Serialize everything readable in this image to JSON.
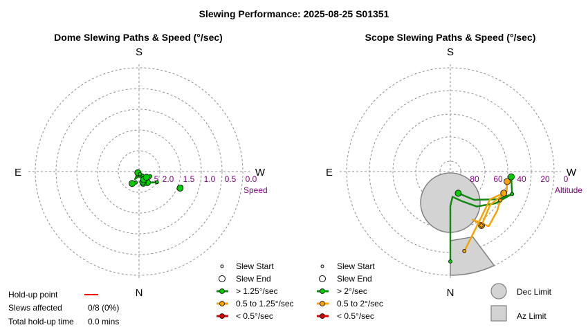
{
  "page": {
    "title": "Slewing Performance: 2025-08-25 S01351"
  },
  "colors": {
    "grid": "#8c8c8c",
    "fast": "#00cc00",
    "fast_line": "#118811",
    "medium": "#f5a300",
    "slow": "#d40000",
    "holdup": "#ff0000",
    "limit_fill": "#d3d3d3",
    "limit_stroke": "#808080",
    "tick": "#800080"
  },
  "chart_data": [
    {
      "type": "scatter",
      "title": "Dome Slewing Paths & Speed (°/sec)",
      "compass": {
        "top": "S",
        "bottom": "N",
        "left": "E",
        "right": "W"
      },
      "radial_axis": {
        "label": "Speed",
        "ticks": [
          "2.5",
          "2.0",
          "1.5",
          "1.0",
          "0.5",
          "0.0"
        ],
        "range": [
          3.0,
          0.0
        ]
      },
      "series": [
        {
          "points": [
            [
              121,
              2.4
            ],
            [
              145,
              2.6
            ],
            [
              180,
              2.87
            ],
            [
              208,
              2.75
            ],
            [
              225,
              2.95
            ]
          ]
        },
        {
          "points": [
            [
              146,
              2.8
            ],
            [
              143,
              2.6
            ]
          ]
        },
        {
          "points": [
            [
              142,
              2.7
            ],
            [
              160,
              2.64
            ]
          ]
        },
        {
          "points": [
            [
              141,
              2.85
            ],
            [
              150,
              2.65
            ],
            [
              160,
              2.68
            ]
          ]
        },
        {
          "points": [
            [
              158,
              2.92
            ],
            [
              150,
              2.73
            ]
          ]
        },
        {
          "points": [
            [
              113,
              2.65
            ],
            [
              128,
              2.73
            ]
          ]
        },
        {
          "points": [
            [
              110,
              1.7
            ],
            [
              112,
              1.72
            ]
          ]
        },
        {
          "points": [
            [
              197,
              2.67
            ],
            [
              210,
              2.6
            ]
          ]
        }
      ],
      "legend": [
        {
          "label": "Slew Start",
          "symbol": "small-circle"
        },
        {
          "label": "Slew End",
          "symbol": "large-circle"
        },
        {
          "label": "> 1.25°/sec",
          "symbol": "fast"
        },
        {
          "label": "0.5 to 1.25°/sec",
          "symbol": "medium"
        },
        {
          "label": "< 0.5°/sec",
          "symbol": "slow"
        }
      ]
    },
    {
      "type": "scatter",
      "title": "Scope Slewing Paths & Speed (°/sec)",
      "compass": {
        "top": "S",
        "bottom": "N",
        "left": "E",
        "right": "W"
      },
      "radial_axis": {
        "label": "Altitude",
        "ticks": [
          "80",
          "60",
          "40",
          "20",
          "0"
        ],
        "range": [
          90,
          0
        ]
      },
      "series": [
        {
          "points": [
            [
              180,
              12
            ],
            [
              180,
              60
            ],
            [
              175,
              68
            ],
            [
              160,
              63
            ],
            [
              143,
              52
            ],
            [
              125,
              42
            ],
            [
              110,
              33
            ],
            [
              95,
              37
            ]
          ],
          "speed": "> 2°/sec"
        },
        {
          "points": [
            [
              110,
              33
            ],
            [
              120,
              42
            ],
            [
              140,
              58
            ],
            [
              160,
              70
            ]
          ],
          "speed": "> 2°/sec"
        },
        {
          "points": [
            [
              120,
              40
            ],
            [
              130,
              37
            ],
            [
              145,
              32
            ],
            [
              155,
              44
            ],
            [
              150,
              36
            ]
          ],
          "speed": "0.5 to 2°/sec"
        },
        {
          "points": [
            [
              150,
              36
            ],
            [
              130,
              45
            ],
            [
              110,
              38
            ],
            [
              100,
              40
            ]
          ],
          "speed": "0.5 to 2°/sec"
        },
        {
          "points": [
            [
              170,
              20
            ],
            [
              150,
              40
            ],
            [
              125,
              48
            ],
            [
              112,
              40
            ]
          ],
          "speed": "0.5 to 2°/sec"
        }
      ],
      "dec_limit": {
        "az_deg": 0,
        "alt_deg": 63
      },
      "az_limit": {
        "az_from": 0,
        "az_to": 17,
        "alt_from": 15,
        "alt_to": 0
      },
      "legend": [
        {
          "label": "Slew Start",
          "symbol": "small-circle"
        },
        {
          "label": "Slew End",
          "symbol": "large-circle"
        },
        {
          "label": "> 2°/sec",
          "symbol": "fast"
        },
        {
          "label": "0.5 to 2°/sec",
          "symbol": "medium"
        },
        {
          "label": "< 0.5°/sec",
          "symbol": "slow"
        }
      ],
      "limit_legend": [
        {
          "label": "Dec Limit",
          "symbol": "circle"
        },
        {
          "label": "Az Limit",
          "symbol": "square"
        }
      ]
    }
  ],
  "holdup": {
    "label": "Hold-up point",
    "slews_label": "Slews affected",
    "slews_value": "0/8 (0%)",
    "time_label": "Total hold-up time",
    "time_value": "0.0 mins"
  }
}
